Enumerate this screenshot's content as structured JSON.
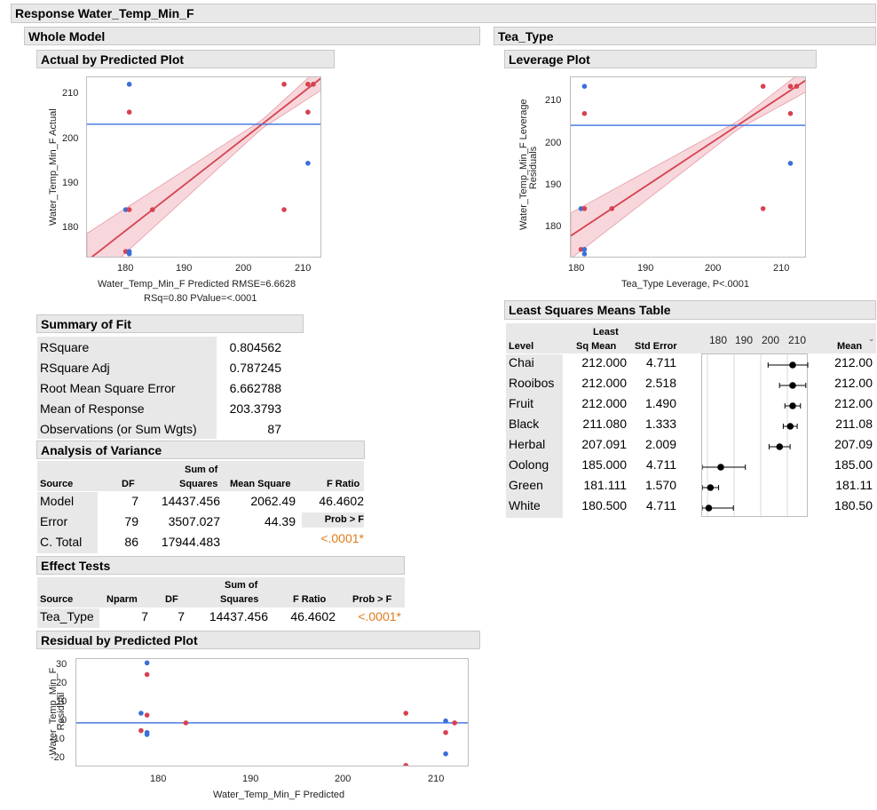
{
  "response_title": "Response Water_Temp_Min_F",
  "whole_model_title": "Whole Model",
  "tea_type_title": "Tea_Type",
  "actual_plot": {
    "title": "Actual by Predicted Plot",
    "ylabel": "Water_Temp_Min_F Actual",
    "xlabel": "Water_Temp_Min_F Predicted RMSE=6.6628",
    "xlabel2": "RSq=0.80 PValue=<.0001",
    "yticks": [
      "210",
      "200",
      "190",
      "180"
    ],
    "xticks": [
      "180",
      "190",
      "200",
      "210"
    ]
  },
  "leverage_plot": {
    "title": "Leverage Plot",
    "ylabel": "Water_Temp_Min_F Leverage",
    "ylabel2": "Residuals",
    "xlabel": "Tea_Type Leverage, P<.0001",
    "yticks": [
      "210",
      "200",
      "190",
      "180"
    ],
    "xticks": [
      "180",
      "190",
      "200",
      "210"
    ]
  },
  "summary_of_fit": {
    "title": "Summary of Fit",
    "rows": [
      {
        "label": "RSquare",
        "value": "0.804562"
      },
      {
        "label": "RSquare Adj",
        "value": "0.787245"
      },
      {
        "label": "Root Mean Square Error",
        "value": "6.662788"
      },
      {
        "label": "Mean of Response",
        "value": "203.3793"
      },
      {
        "label": "Observations (or Sum Wgts)",
        "value": "87"
      }
    ]
  },
  "anova": {
    "title": "Analysis of Variance",
    "headers": {
      "source": "Source",
      "df": "DF",
      "ss1": "Sum of",
      "ss2": "Squares",
      "ms": "Mean Square",
      "f": "F Ratio",
      "prob": "Prob > F"
    },
    "rows": [
      {
        "source": "Model",
        "df": "7",
        "ss": "14437.456",
        "ms": "2062.49",
        "f": "46.4602"
      },
      {
        "source": "Error",
        "df": "79",
        "ss": "3507.027",
        "ms": "44.39"
      },
      {
        "source": "C. Total",
        "df": "86",
        "ss": "17944.483"
      }
    ],
    "pvalue": "<.0001*"
  },
  "effect_tests": {
    "title": "Effect Tests",
    "headers": {
      "source": "Source",
      "nparm": "Nparm",
      "df": "DF",
      "ss1": "Sum of",
      "ss2": "Squares",
      "f": "F Ratio",
      "prob": "Prob > F"
    },
    "row": {
      "source": "Tea_Type",
      "nparm": "7",
      "df": "7",
      "ss": "14437.456",
      "f": "46.4602",
      "prob": "<.0001*"
    }
  },
  "residual_plot": {
    "title": "Residual by Predicted Plot",
    "ylabel": "Water_Temp_Min_F",
    "ylabel2": "Residual",
    "xlabel": "Water_Temp_Min_F Predicted",
    "yticks": [
      "30",
      "20",
      "10",
      "0",
      "-10",
      "-20"
    ],
    "xticks": [
      "180",
      "190",
      "200",
      "210"
    ]
  },
  "lsm": {
    "title": "Least Squares Means Table",
    "headers": {
      "level": "Level",
      "lsm1": "Least",
      "lsm2": "Sq Mean",
      "se": "Std Error",
      "mean": "Mean"
    },
    "axis_ticks": [
      "180",
      "190",
      "200",
      "210"
    ],
    "rows": [
      {
        "level": "Chai",
        "lsm": "212.000",
        "se": "4.711",
        "mean": "212.00"
      },
      {
        "level": "Rooibos",
        "lsm": "212.000",
        "se": "2.518",
        "mean": "212.00"
      },
      {
        "level": "Fruit",
        "lsm": "212.000",
        "se": "1.490",
        "mean": "212.00"
      },
      {
        "level": "Black",
        "lsm": "211.080",
        "se": "1.333",
        "mean": "211.08"
      },
      {
        "level": "Herbal",
        "lsm": "207.091",
        "se": "2.009",
        "mean": "207.09"
      },
      {
        "level": "Oolong",
        "lsm": "185.000",
        "se": "4.711",
        "mean": "185.00"
      },
      {
        "level": "Green",
        "lsm": "181.111",
        "se": "1.570",
        "mean": "181.11"
      },
      {
        "level": "White",
        "lsm": "180.500",
        "se": "4.711",
        "mean": "180.50"
      }
    ]
  },
  "colors": {
    "red": "#d6424f",
    "blue": "#3a6fd8",
    "band": "#f4c6cc",
    "meanline": "#4a7be0"
  },
  "chart_data": [
    {
      "type": "scatter",
      "title": "Actual by Predicted Plot",
      "xlabel": "Water_Temp_Min_F Predicted RMSE=6.6628",
      "ylabel": "Water_Temp_Min_F Actual",
      "xlim": [
        174,
        213.5
      ],
      "ylim": [
        174.5,
        213.5
      ],
      "mean_line": 203.38,
      "fit_line": [
        [
          174,
          174
        ],
        [
          213.5,
          213.5
        ]
      ],
      "points": [
        {
          "x": 181.1,
          "y": 212,
          "c": "blue"
        },
        {
          "x": 181.1,
          "y": 206,
          "c": "red"
        },
        {
          "x": 180.5,
          "y": 185,
          "c": "blue"
        },
        {
          "x": 181.1,
          "y": 185,
          "c": "red"
        },
        {
          "x": 180.5,
          "y": 176,
          "c": "red"
        },
        {
          "x": 181.1,
          "y": 176,
          "c": "blue"
        },
        {
          "x": 181.1,
          "y": 175.5,
          "c": "blue"
        },
        {
          "x": 185,
          "y": 185,
          "c": "red"
        },
        {
          "x": 207.1,
          "y": 212,
          "c": "red"
        },
        {
          "x": 207.1,
          "y": 185,
          "c": "red"
        },
        {
          "x": 211.1,
          "y": 212,
          "c": "red"
        },
        {
          "x": 211.1,
          "y": 206,
          "c": "red"
        },
        {
          "x": 211.1,
          "y": 195,
          "c": "blue"
        },
        {
          "x": 212,
          "y": 212,
          "c": "red"
        }
      ]
    },
    {
      "type": "scatter",
      "title": "Leverage Plot",
      "xlabel": "Tea_Type Leverage, P<.0001",
      "ylabel": "Water_Temp_Min_F Leverage Residuals",
      "xlim": [
        179,
        213.5
      ],
      "ylim": [
        174,
        214
      ],
      "mean_line": 203.38,
      "points": [
        {
          "x": 181,
          "y": 212,
          "c": "blue"
        },
        {
          "x": 181,
          "y": 206,
          "c": "red"
        },
        {
          "x": 180.5,
          "y": 185,
          "c": "blue"
        },
        {
          "x": 181,
          "y": 185,
          "c": "red"
        },
        {
          "x": 180.5,
          "y": 176,
          "c": "red"
        },
        {
          "x": 181,
          "y": 176,
          "c": "blue"
        },
        {
          "x": 181,
          "y": 175,
          "c": "blue"
        },
        {
          "x": 185,
          "y": 185,
          "c": "red"
        },
        {
          "x": 207.1,
          "y": 212,
          "c": "red"
        },
        {
          "x": 207.1,
          "y": 185,
          "c": "red"
        },
        {
          "x": 211.1,
          "y": 212,
          "c": "red"
        },
        {
          "x": 211.1,
          "y": 206,
          "c": "red"
        },
        {
          "x": 211.1,
          "y": 195,
          "c": "blue"
        },
        {
          "x": 212,
          "y": 212,
          "c": "red"
        }
      ]
    },
    {
      "type": "scatter",
      "title": "Residual by Predicted Plot",
      "xlabel": "Water_Temp_Min_F Predicted",
      "ylabel": "Water_Temp_Min_F Residual",
      "xlim": [
        174,
        213.5
      ],
      "ylim": [
        -23,
        33
      ],
      "zero_line": 0,
      "points": [
        {
          "x": 181.1,
          "y": 31,
          "c": "blue"
        },
        {
          "x": 181.1,
          "y": 25,
          "c": "red"
        },
        {
          "x": 180.5,
          "y": 5,
          "c": "blue"
        },
        {
          "x": 181.1,
          "y": 4,
          "c": "red"
        },
        {
          "x": 180.5,
          "y": -4,
          "c": "red"
        },
        {
          "x": 181.1,
          "y": -5,
          "c": "blue"
        },
        {
          "x": 181.1,
          "y": -6,
          "c": "blue"
        },
        {
          "x": 185,
          "y": 0,
          "c": "red"
        },
        {
          "x": 207.1,
          "y": 5,
          "c": "red"
        },
        {
          "x": 207.1,
          "y": -22,
          "c": "red"
        },
        {
          "x": 211.1,
          "y": 1,
          "c": "blue"
        },
        {
          "x": 211.1,
          "y": -5,
          "c": "red"
        },
        {
          "x": 211.1,
          "y": -16,
          "c": "blue"
        },
        {
          "x": 212,
          "y": 0,
          "c": "red"
        }
      ]
    }
  ]
}
